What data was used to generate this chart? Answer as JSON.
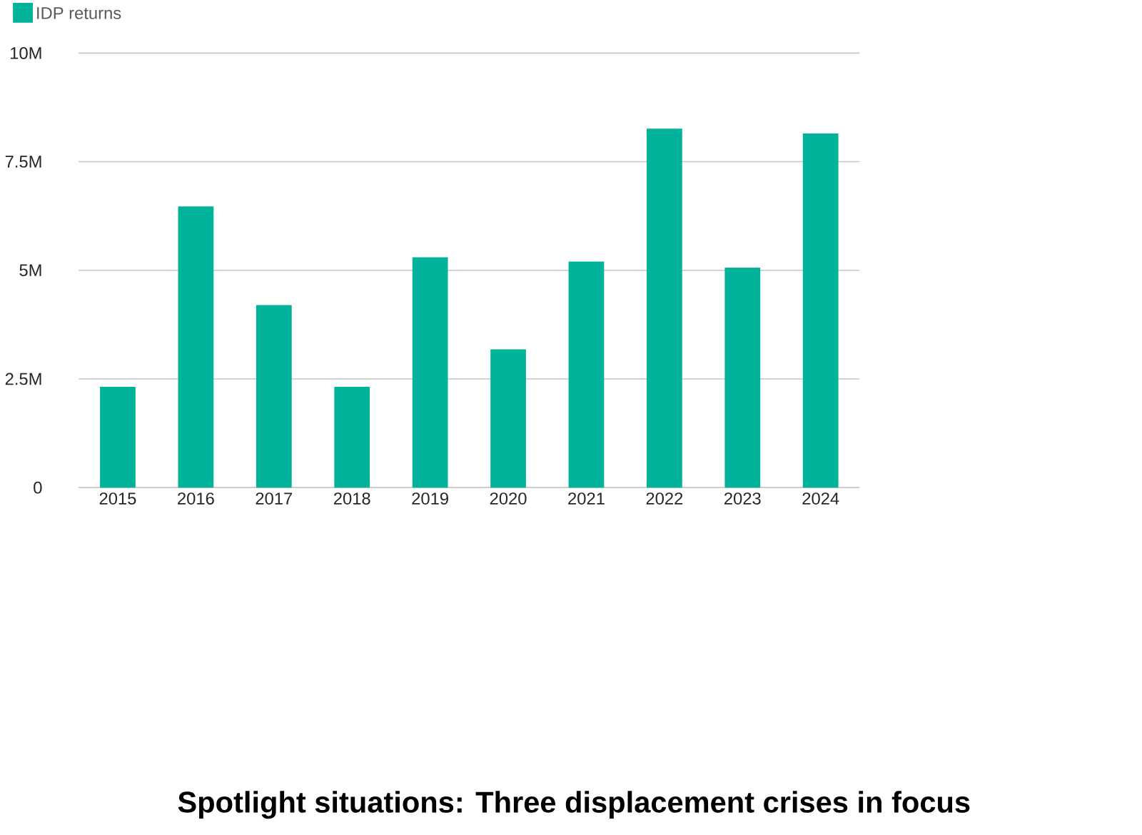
{
  "chart_data": {
    "type": "bar",
    "title": "Spotlight situations: Three displacement crises in focus",
    "categories": [
      "2015",
      "2016",
      "2017",
      "2018",
      "2019",
      "2020",
      "2021",
      "2022",
      "2023",
      "2024"
    ],
    "series": [
      {
        "name": "IDP returns",
        "color": "#00b39a",
        "values": [
          2320000,
          6470000,
          4200000,
          2320000,
          5300000,
          3180000,
          5200000,
          8260000,
          5060000,
          8150000
        ]
      }
    ],
    "ylim": [
      0,
      10000000
    ],
    "yticks": [
      {
        "value": 0,
        "label": "0"
      },
      {
        "value": 2500000,
        "label": "2.5M"
      },
      {
        "value": 5000000,
        "label": "5M"
      },
      {
        "value": 7500000,
        "label": "7.5M"
      },
      {
        "value": 10000000,
        "label": "10M"
      }
    ],
    "grid": "y",
    "legend": "top left"
  }
}
